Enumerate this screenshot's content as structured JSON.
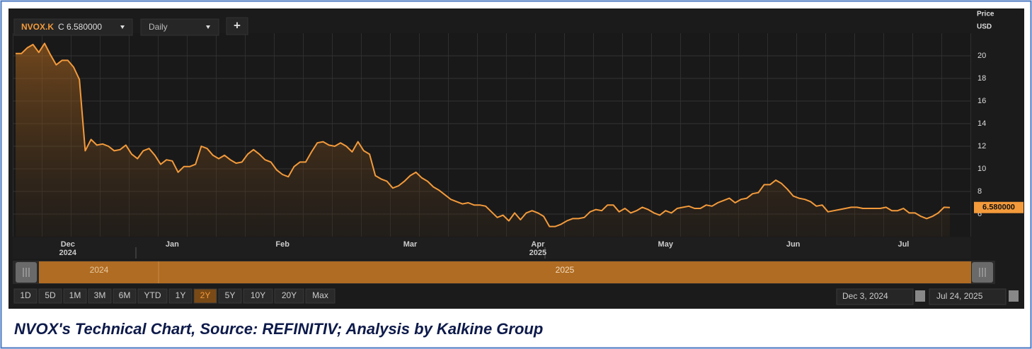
{
  "toolbar": {
    "symbol": "NVOX.K",
    "quote": "C 6.580000",
    "interval": "Daily",
    "add": "+",
    "ranges": [
      "1D",
      "5D",
      "1M",
      "3M",
      "6M",
      "YTD",
      "1Y",
      "2Y",
      "5Y",
      "10Y",
      "20Y",
      "Max"
    ],
    "active_range": "2Y",
    "from": "Dec 3, 2024",
    "to": "Jul 24, 2025",
    "navigator_labels": [
      "2024",
      "2025"
    ]
  },
  "chart_data": {
    "type": "line",
    "y_axis_title": "Price",
    "y_axis_unit": "USD",
    "categories": [
      null,
      null,
      null,
      null,
      null,
      null,
      null,
      null,
      null,
      "Dec",
      null,
      null,
      null,
      null,
      null,
      null,
      null,
      null,
      null,
      null,
      null,
      null,
      null,
      null,
      null,
      null,
      null,
      "Jan",
      null,
      null,
      null,
      null,
      null,
      null,
      null,
      null,
      null,
      null,
      null,
      null,
      null,
      null,
      null,
      null,
      null,
      null,
      "Feb",
      null,
      null,
      null,
      null,
      null,
      null,
      null,
      null,
      null,
      null,
      null,
      null,
      null,
      null,
      null,
      null,
      null,
      null,
      null,
      null,
      null,
      "Mar",
      null,
      null,
      null,
      null,
      null,
      null,
      null,
      null,
      null,
      null,
      null,
      null,
      null,
      null,
      null,
      null,
      null,
      null,
      null,
      null,
      null,
      "Apr",
      null,
      null,
      null,
      null,
      null,
      null,
      null,
      null,
      null,
      null,
      null,
      null,
      null,
      null,
      null,
      null,
      null,
      null,
      null,
      null,
      null,
      "May",
      null,
      null,
      null,
      null,
      null,
      null,
      null,
      null,
      null,
      null,
      null,
      null,
      null,
      null,
      null,
      null,
      null,
      null,
      null,
      null,
      null,
      "Jun",
      null,
      null,
      null,
      null,
      null,
      null,
      null,
      null,
      null,
      null,
      null,
      null,
      null,
      null,
      null,
      null,
      null,
      null,
      "Jul",
      null,
      null,
      null,
      null,
      null,
      null,
      null,
      null
    ],
    "x_sublabels": [
      null,
      null,
      null,
      null,
      null,
      null,
      null,
      null,
      null,
      "2024",
      null,
      null,
      null,
      null,
      null,
      null,
      null,
      null,
      null,
      null,
      null,
      null,
      null,
      null,
      null,
      null,
      null,
      null,
      null,
      null,
      null,
      null,
      null,
      null,
      null,
      null,
      null,
      null,
      null,
      null,
      null,
      null,
      null,
      null,
      null,
      null,
      null,
      null,
      null,
      null,
      null,
      null,
      null,
      null,
      null,
      null,
      null,
      null,
      null,
      null,
      null,
      null,
      null,
      null,
      null,
      null,
      null,
      null,
      null,
      null,
      null,
      null,
      null,
      null,
      null,
      null,
      null,
      null,
      null,
      null,
      null,
      null,
      null,
      null,
      null,
      null,
      null,
      null,
      null,
      null,
      "2025",
      null,
      null,
      null,
      null,
      null,
      null,
      null,
      null,
      null,
      null,
      null,
      null,
      null,
      null,
      null,
      null,
      null,
      null,
      null,
      null,
      null,
      null,
      null,
      null,
      null,
      null,
      null,
      null,
      null,
      null,
      null,
      null,
      null,
      null,
      null,
      null,
      null,
      null,
      null,
      null,
      null,
      null,
      null,
      null,
      null,
      null,
      null,
      null,
      null,
      null,
      null,
      null,
      null,
      null,
      null,
      null,
      null,
      null,
      null,
      null,
      null,
      null,
      null,
      null,
      null,
      null,
      null,
      null,
      null,
      null,
      null
    ],
    "values": [
      20.2,
      20.2,
      20.7,
      21.0,
      20.3,
      21.1,
      20.1,
      19.2,
      19.6,
      19.6,
      19.0,
      17.9,
      11.6,
      12.6,
      12.1,
      12.2,
      12.0,
      11.6,
      11.7,
      12.1,
      11.3,
      10.9,
      11.6,
      11.8,
      11.2,
      10.4,
      10.8,
      10.7,
      9.7,
      10.2,
      10.2,
      10.4,
      12.0,
      11.8,
      11.2,
      10.9,
      11.2,
      10.8,
      10.5,
      10.6,
      11.3,
      11.7,
      11.3,
      10.8,
      10.6,
      9.9,
      9.5,
      9.3,
      10.2,
      10.6,
      10.6,
      11.5,
      12.3,
      12.4,
      12.1,
      12.0,
      12.3,
      12.0,
      11.5,
      12.4,
      11.6,
      11.3,
      9.4,
      9.1,
      8.9,
      8.3,
      8.5,
      8.9,
      9.4,
      9.7,
      9.2,
      8.9,
      8.4,
      8.1,
      7.7,
      7.3,
      7.1,
      6.9,
      7.0,
      6.8,
      6.8,
      6.7,
      6.2,
      5.7,
      5.9,
      5.4,
      6.1,
      5.5,
      6.1,
      6.3,
      6.1,
      5.8,
      4.9,
      4.9,
      5.1,
      5.4,
      5.6,
      5.6,
      5.7,
      6.2,
      6.4,
      6.3,
      6.8,
      6.8,
      6.2,
      6.5,
      6.1,
      6.3,
      6.6,
      6.4,
      6.1,
      5.9,
      6.3,
      6.1,
      6.5,
      6.6,
      6.7,
      6.5,
      6.5,
      6.8,
      6.7,
      7.0,
      7.2,
      7.4,
      7.0,
      7.3,
      7.4,
      7.8,
      7.9,
      8.6,
      8.6,
      9.0,
      8.7,
      8.2,
      7.6,
      7.4,
      7.3,
      7.1,
      6.7,
      6.8,
      6.2,
      6.3,
      6.4,
      6.5,
      6.6,
      6.6,
      6.5,
      6.5,
      6.5,
      6.5,
      6.6,
      6.3,
      6.3,
      6.5,
      6.1,
      6.1,
      5.8,
      5.6,
      5.8,
      6.1,
      6.6,
      6.58
    ],
    "value_labels": [
      null,
      null,
      null,
      null,
      null,
      null,
      null,
      null,
      null,
      null,
      null,
      null,
      null,
      null,
      null,
      null,
      null,
      null,
      null,
      null,
      null,
      null,
      null,
      null,
      null,
      null,
      null,
      null,
      null,
      null,
      null,
      null,
      null,
      null,
      null,
      null,
      null,
      null,
      null,
      null,
      null,
      null,
      null,
      null,
      null,
      null,
      null,
      null,
      null,
      null,
      null,
      null,
      null,
      null,
      null,
      null,
      null,
      null,
      null,
      null,
      null,
      null,
      null,
      null,
      null,
      null,
      null,
      null,
      null,
      null,
      null,
      null,
      null,
      null,
      null,
      null,
      null,
      null,
      null,
      null,
      null,
      null,
      null,
      null,
      null,
      null,
      null,
      null,
      null,
      null,
      null,
      null,
      null,
      null,
      null,
      null,
      null,
      null,
      null,
      null,
      null,
      null,
      null,
      null,
      null,
      null,
      null,
      null,
      null,
      null,
      null,
      null,
      null,
      null,
      null,
      null,
      null,
      null,
      null,
      null,
      null,
      null,
      null,
      null,
      null,
      null,
      null,
      null,
      null,
      null,
      null,
      null,
      null,
      null,
      null,
      null,
      null,
      null,
      null,
      null,
      null,
      null,
      null,
      null,
      null,
      null,
      null,
      null,
      null,
      null,
      null,
      null,
      null,
      null,
      null,
      null,
      null,
      null,
      null,
      null,
      null,
      "6.580000"
    ],
    "color": "#f39a3b",
    "ylim": [
      4,
      22
    ],
    "yticks": [
      6,
      8,
      10,
      12,
      14,
      16,
      18,
      20
    ],
    "grid": true
  },
  "caption": "NVOX's Technical Chart, Source: REFINITIV; Analysis by Kalkine Group"
}
